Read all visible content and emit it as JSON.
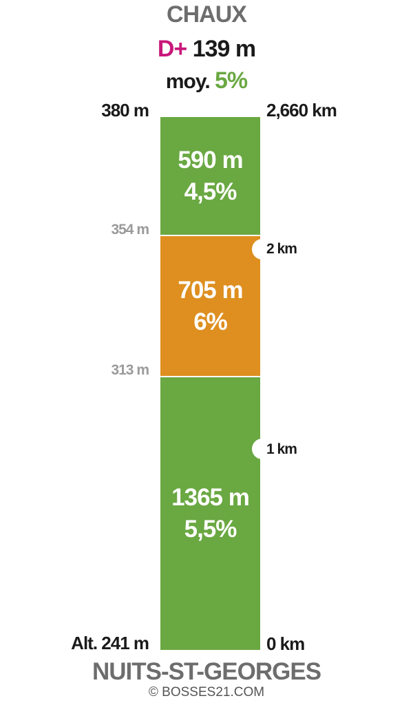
{
  "header": {
    "summit": "CHAUX",
    "gain_prefix": "D+",
    "gain_value": "139 m",
    "avg_prefix": "moy.",
    "avg_value": "5%"
  },
  "footer": {
    "start": "NUITS-ST-GEORGES",
    "credit": "© BOSSES21.COM"
  },
  "altitudes": {
    "top": "380 m",
    "mid_upper": "354 m",
    "mid_lower": "313 m",
    "bottom": "Alt. 241 m"
  },
  "distances": {
    "total": "2,660 km",
    "km2": "2 km",
    "km1": "1 km",
    "start": "0 km"
  },
  "colors": {
    "moderate": "#6aa842",
    "steep": "#de8f1f",
    "gain_prefix": "#c8177a",
    "title_grey": "#6d6d6d"
  },
  "chart_data": {
    "type": "bar",
    "title": "CHAUX",
    "total_distance_km": 2.66,
    "elevation_gain_m": 139,
    "average_grade_pct": 5,
    "start_altitude_m": 241,
    "end_altitude_m": 380,
    "segments": [
      {
        "length_m": 1365,
        "length_label": "1365 m",
        "grade_pct": 5.5,
        "grade_label": "5,5%",
        "color": "#6aa842"
      },
      {
        "length_m": 705,
        "length_label": "705 m",
        "grade_pct": 6,
        "grade_label": "6%",
        "color": "#de8f1f"
      },
      {
        "length_m": 590,
        "length_label": "590 m",
        "grade_pct": 4.5,
        "grade_label": "4,5%",
        "color": "#6aa842"
      }
    ],
    "altitude_marks_m": [
      241,
      313,
      354,
      380
    ],
    "km_marks": [
      0,
      1,
      2
    ]
  }
}
